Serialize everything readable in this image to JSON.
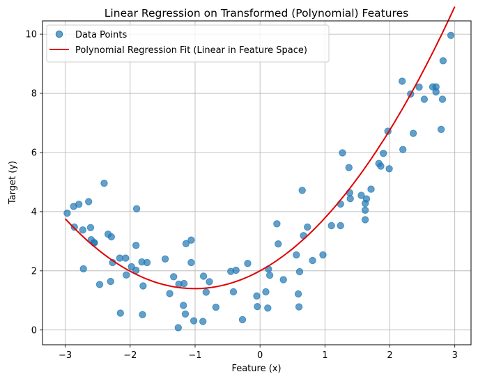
{
  "chart_data": {
    "type": "scatter",
    "title": "Linear Regression on Transformed (Polynomial) Features",
    "xlabel": "Feature (x)",
    "ylabel": "Target (y)",
    "xlim": [
      -3.35,
      3.25
    ],
    "ylim": [
      -0.5,
      10.45
    ],
    "x_ticks": [
      -3,
      -2,
      -1,
      0,
      1,
      2,
      3
    ],
    "y_ticks": [
      0,
      2,
      4,
      6,
      8,
      10
    ],
    "grid": true,
    "legend_position": "top-left",
    "series": [
      {
        "name": "Data Points",
        "kind": "scatter",
        "color": "#1f77b4",
        "points": [
          [
            -2.97,
            3.95
          ],
          [
            -2.87,
            4.18
          ],
          [
            -2.86,
            3.48
          ],
          [
            -2.79,
            4.25
          ],
          [
            -2.73,
            3.38
          ],
          [
            -2.72,
            2.07
          ],
          [
            -2.64,
            4.34
          ],
          [
            -2.61,
            3.46
          ],
          [
            -2.6,
            3.05
          ],
          [
            -2.56,
            2.95
          ],
          [
            -2.55,
            2.95
          ],
          [
            -2.47,
            1.54
          ],
          [
            -2.4,
            4.96
          ],
          [
            -2.34,
            3.24
          ],
          [
            -2.3,
            1.64
          ],
          [
            -2.29,
            3.15
          ],
          [
            -2.27,
            2.28
          ],
          [
            -2.16,
            2.43
          ],
          [
            -2.15,
            0.57
          ],
          [
            -2.07,
            2.43
          ],
          [
            -2.06,
            1.86
          ],
          [
            -1.98,
            2.14
          ],
          [
            -1.91,
            2.86
          ],
          [
            -1.91,
            2.02
          ],
          [
            -1.9,
            4.1
          ],
          [
            -1.82,
            2.3
          ],
          [
            -1.81,
            0.52
          ],
          [
            -1.8,
            1.49
          ],
          [
            -1.74,
            2.28
          ],
          [
            -1.46,
            2.4
          ],
          [
            -1.39,
            1.23
          ],
          [
            -1.33,
            1.8
          ],
          [
            -1.26,
            0.08
          ],
          [
            -1.25,
            1.55
          ],
          [
            -1.18,
            0.83
          ],
          [
            -1.17,
            1.57
          ],
          [
            -1.15,
            0.54
          ],
          [
            -1.14,
            2.92
          ],
          [
            -1.06,
            3.04
          ],
          [
            -1.06,
            2.28
          ],
          [
            -1.02,
            0.31
          ],
          [
            -0.88,
            0.29
          ],
          [
            -0.87,
            1.82
          ],
          [
            -0.83,
            1.28
          ],
          [
            -0.78,
            1.63
          ],
          [
            -0.68,
            0.77
          ],
          [
            -0.45,
            1.98
          ],
          [
            -0.41,
            1.29
          ],
          [
            -0.37,
            2.02
          ],
          [
            -0.27,
            0.35
          ],
          [
            -0.19,
            2.25
          ],
          [
            -0.05,
            1.15
          ],
          [
            -0.04,
            0.79
          ],
          [
            0.09,
            1.29
          ],
          [
            0.12,
            0.74
          ],
          [
            0.13,
            2.06
          ],
          [
            0.15,
            1.85
          ],
          [
            0.26,
            3.59
          ],
          [
            0.28,
            2.91
          ],
          [
            0.36,
            1.7
          ],
          [
            0.56,
            2.54
          ],
          [
            0.59,
            1.22
          ],
          [
            0.6,
            0.78
          ],
          [
            0.61,
            1.97
          ],
          [
            0.65,
            4.72
          ],
          [
            0.67,
            3.19
          ],
          [
            0.73,
            3.48
          ],
          [
            0.81,
            2.35
          ],
          [
            0.97,
            2.54
          ],
          [
            1.1,
            3.53
          ],
          [
            1.24,
            3.53
          ],
          [
            1.24,
            4.26
          ],
          [
            1.27,
            5.99
          ],
          [
            1.37,
            5.49
          ],
          [
            1.38,
            4.64
          ],
          [
            1.39,
            4.44
          ],
          [
            1.56,
            4.55
          ],
          [
            1.62,
            4.28
          ],
          [
            1.62,
            4.05
          ],
          [
            1.62,
            3.73
          ],
          [
            1.64,
            4.43
          ],
          [
            1.71,
            4.76
          ],
          [
            1.83,
            5.63
          ],
          [
            1.86,
            5.54
          ],
          [
            1.9,
            5.97
          ],
          [
            1.97,
            6.72
          ],
          [
            1.99,
            5.45
          ],
          [
            2.19,
            8.41
          ],
          [
            2.2,
            6.1
          ],
          [
            2.32,
            7.98
          ],
          [
            2.36,
            6.65
          ],
          [
            2.45,
            8.21
          ],
          [
            2.53,
            7.8
          ],
          [
            2.66,
            8.22
          ],
          [
            2.71,
            8.22
          ],
          [
            2.71,
            8.05
          ],
          [
            2.79,
            6.78
          ],
          [
            2.81,
            7.8
          ],
          [
            2.82,
            9.1
          ],
          [
            2.94,
            9.96
          ]
        ]
      },
      {
        "name": "Polynomial Regression Fit (Linear in Feature Space)",
        "kind": "line",
        "color": "#e00000",
        "model": {
          "form": "quadratic",
          "a": 0.594,
          "b": 1.195,
          "c": 2.0
        },
        "x_range": [
          -3,
          3
        ]
      }
    ]
  }
}
